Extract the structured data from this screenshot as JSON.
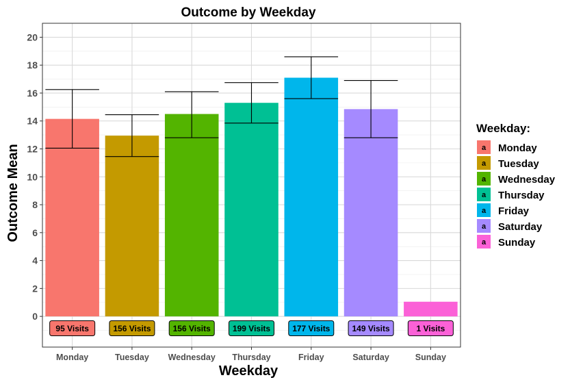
{
  "chart_data": {
    "type": "bar",
    "title": "Outcome by Weekday",
    "xlabel": "Weekday",
    "ylabel": "Outcome Mean",
    "ylim": [
      -2.2,
      21
    ],
    "yticks": [
      0,
      2,
      4,
      6,
      8,
      10,
      12,
      14,
      16,
      18,
      20
    ],
    "grid": true,
    "legend": {
      "title": "Weekday:",
      "position": "right",
      "key_glyph": "a"
    },
    "categories": [
      "Monday",
      "Tuesday",
      "Wednesday",
      "Thursday",
      "Friday",
      "Saturday",
      "Sunday"
    ],
    "values": [
      14.15,
      12.95,
      14.5,
      15.3,
      17.1,
      14.85,
      1.05
    ],
    "error_low": [
      12.05,
      11.45,
      12.8,
      13.85,
      15.6,
      12.8,
      null
    ],
    "error_high": [
      16.25,
      14.45,
      16.1,
      16.75,
      18.6,
      16.9,
      null
    ],
    "data_labels": [
      "95 Visits",
      "156 Visits",
      "156 Visits",
      "199 Visits",
      "177 Visits",
      "149 Visits",
      "1 Visits"
    ],
    "colors": [
      "#F8766D",
      "#C49A00",
      "#53B400",
      "#00C094",
      "#00B6EB",
      "#A58AFF",
      "#FB61D7"
    ]
  }
}
